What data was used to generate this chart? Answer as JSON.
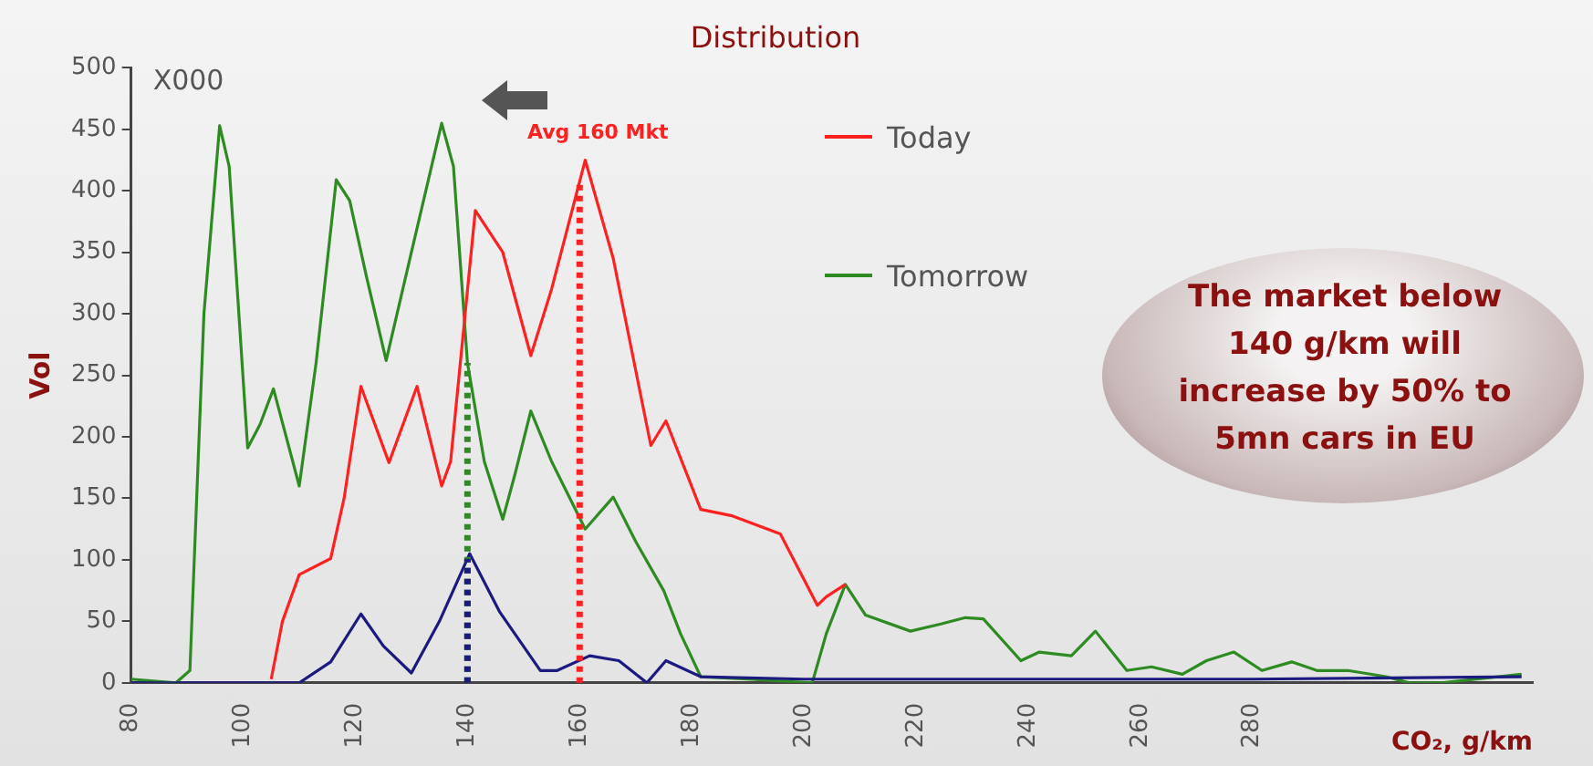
{
  "chart_data": {
    "type": "line",
    "title": "Distribution",
    "xlabel": "CO₂, g/km",
    "ylabel": "Vol",
    "xlim": [
      80,
      330
    ],
    "xticks": [
      80,
      100,
      120,
      140,
      160,
      180,
      200,
      220,
      240,
      260,
      280
    ],
    "ylim": [
      0,
      500
    ],
    "yticks": [
      0,
      50,
      100,
      150,
      200,
      250,
      300,
      350,
      400,
      450,
      500
    ],
    "grid": false,
    "legend": "top right",
    "marker": "none",
    "line_style": "solid",
    "series": [
      {
        "name": "Today",
        "color": "#ff2020",
        "x": [
          105,
          107,
          110,
          115.6,
          118,
          121,
          126,
          131,
          135.4,
          137,
          141.4,
          146.3,
          151.3,
          155,
          161,
          166,
          172.7,
          175.4,
          181.6,
          187,
          195.8,
          202.4,
          204,
          207.4
        ],
        "values": [
          3,
          50,
          88,
          101,
          150,
          241,
          179,
          241,
          160,
          180,
          384,
          350,
          266,
          320,
          425,
          345,
          193,
          213,
          141,
          136,
          121,
          63,
          70,
          80
        ]
      },
      {
        "color": "#1a1a80",
        "x": [
          80,
          110,
          115.6,
          121,
          125,
          130,
          135,
          140.4,
          145.7,
          153,
          156,
          161.8,
          167,
          172,
          175.4,
          181.6,
          200,
          240,
          280,
          328
        ],
        "values": [
          0,
          0,
          17,
          56,
          30,
          8,
          50,
          105,
          58,
          10,
          10,
          22,
          18,
          0,
          18,
          5,
          3,
          3,
          3,
          5
        ]
      },
      {
        "name": "Tomorrow",
        "color": "#2e8b22",
        "x": [
          80,
          88,
          90.5,
          93,
          95.8,
          97.5,
          100.8,
          103,
          105.4,
          110,
          113,
          116.6,
          119,
          122,
          125.5,
          130,
          135.4,
          137.5,
          140,
          143,
          146.3,
          148.5,
          151.3,
          155,
          161,
          166,
          170,
          175,
          178,
          181.6,
          190,
          201.5,
          204,
          207.4,
          211,
          219,
          224.6,
          228.8,
          232,
          238.7,
          242,
          247.7,
          252,
          257.6,
          262,
          267.5,
          271.8,
          276.7,
          281.7,
          287,
          291.5,
          297,
          303.8,
          308,
          313.7,
          328
        ],
        "values": [
          3,
          0,
          10,
          300,
          453,
          420,
          191,
          210,
          239,
          160,
          260,
          409,
          392,
          330,
          262,
          350,
          455,
          420,
          260,
          180,
          133,
          170,
          221,
          180,
          125,
          151,
          115,
          75,
          40,
          5,
          3,
          0,
          40,
          80,
          55,
          42,
          48,
          53,
          52,
          18,
          25,
          22,
          42,
          10,
          13,
          7,
          18,
          25,
          10,
          17,
          10,
          10,
          5,
          0,
          0,
          7
        ]
      }
    ],
    "ref_lines": [
      {
        "axis": "x",
        "value": 140,
        "color": "#2e8b22",
        "line_style": "dotted"
      },
      {
        "axis": "x",
        "value": 140,
        "color": "#1a1a80",
        "line_style": "dotted"
      },
      {
        "axis": "x",
        "value": 160,
        "color": "#ff2020",
        "line_style": "dotted"
      }
    ],
    "annotations": [
      "X000",
      {
        "text": "Avg 160 Mkt",
        "x": 160,
        "y": 425
      },
      "The market below 140 g/km will increase by 50% to 5mn cars in EU"
    ]
  }
}
